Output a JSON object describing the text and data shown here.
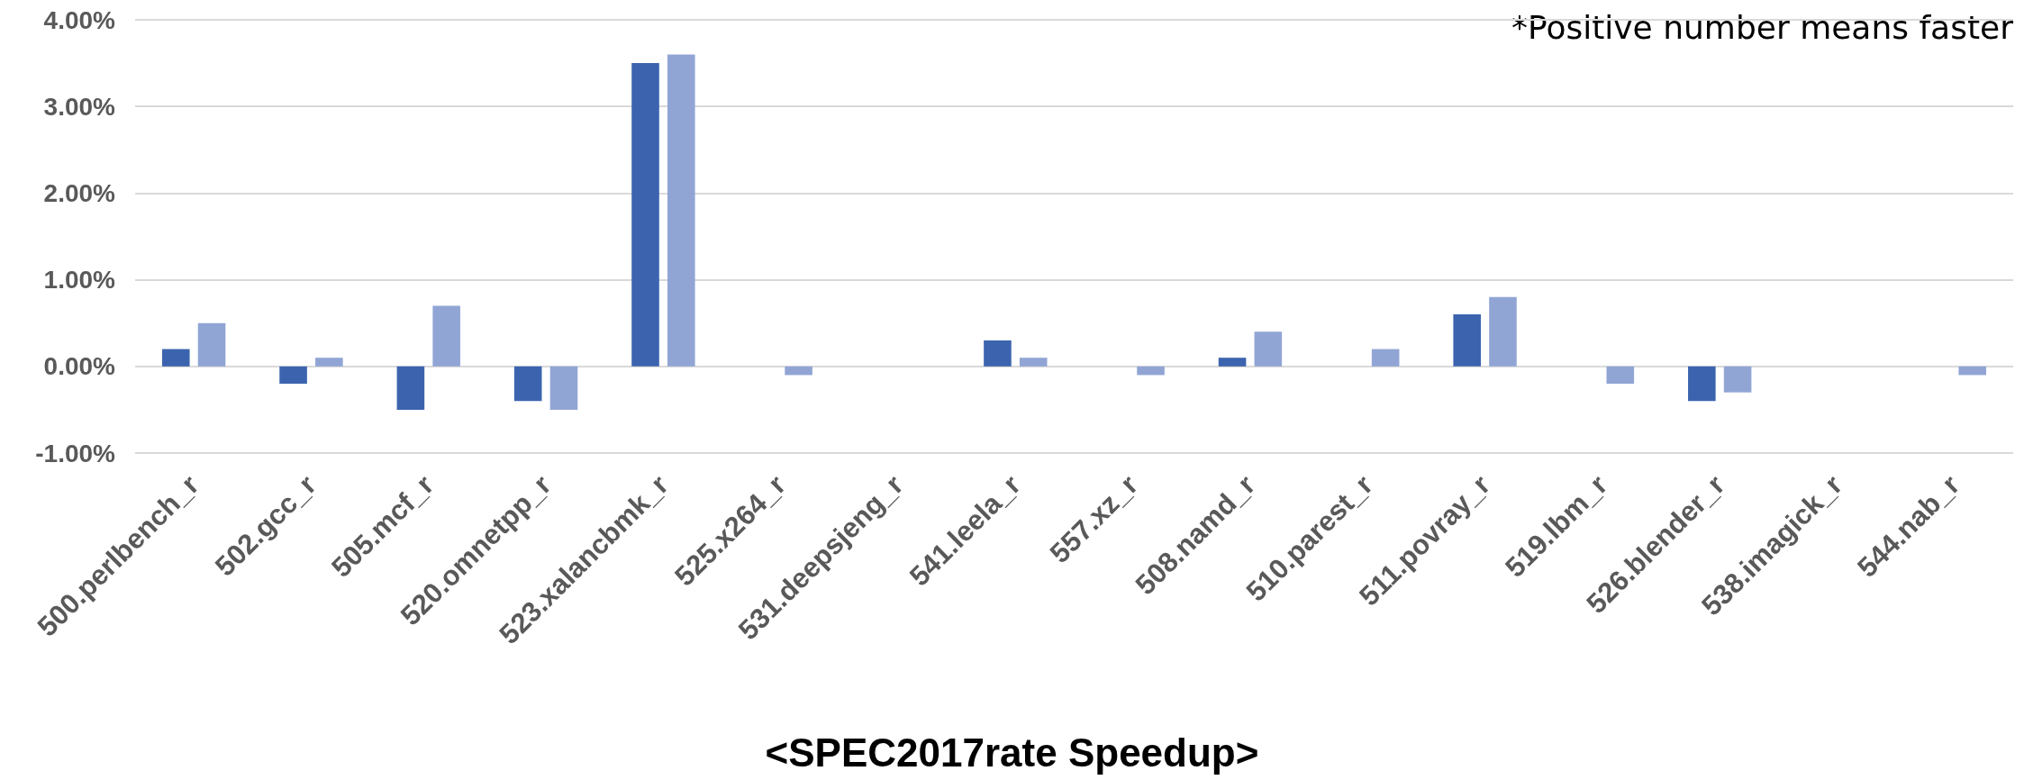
{
  "chart_data": {
    "type": "bar",
    "title": "<SPEC2017rate Speedup>",
    "annotations": [
      "*Positive number means faster"
    ],
    "categories": [
      "500.perlbench_r",
      "502.gcc_r",
      "505.mcf_r",
      "520.omnetpp_r",
      "523.xalancbmk_r",
      "525.x264_r",
      "531.deepsjeng_r",
      "541.leela_r",
      "557.xz_r",
      "508.namd_r",
      "510.parest_r",
      "511.povray_r",
      "519.lbm_r",
      "526.blender_r",
      "538.imagick_r",
      "544.nab_r"
    ],
    "series": [
      {
        "color": "#3c64ae",
        "values": [
          0.2,
          -0.2,
          -0.5,
          -0.4,
          3.5,
          0,
          0,
          0.3,
          0,
          0.1,
          0,
          0.6,
          0,
          -0.4,
          0,
          0
        ]
      },
      {
        "color": "#91a5d5",
        "values": [
          0.5,
          0.1,
          0.7,
          -0.5,
          3.6,
          -0.1,
          0,
          0.1,
          -0.1,
          0.4,
          0.2,
          0.8,
          -0.2,
          -0.3,
          0,
          -0.1
        ]
      }
    ],
    "ylim": [
      -1,
      4
    ],
    "yticks": [
      {
        "value": -1,
        "label": "-1.00%"
      },
      {
        "value": 0,
        "label": "0.00%"
      },
      {
        "value": 1,
        "label": "1.00%"
      },
      {
        "value": 2,
        "label": "2.00%"
      },
      {
        "value": 3,
        "label": "3.00%"
      },
      {
        "value": 4,
        "label": "4.00%"
      }
    ],
    "grid": "y"
  }
}
